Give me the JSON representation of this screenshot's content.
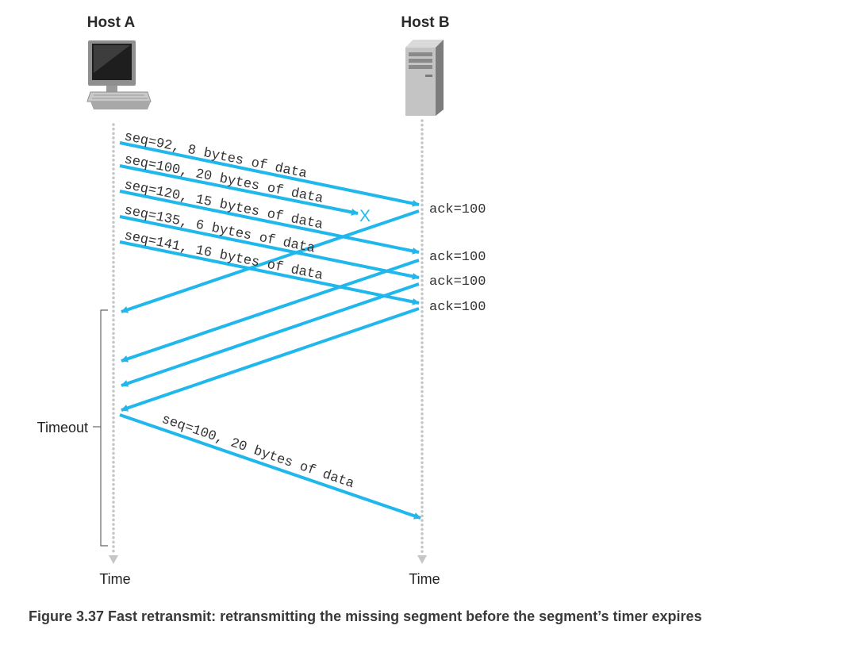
{
  "hosts": {
    "a_label": "Host A",
    "b_label": "Host B"
  },
  "time_labels": {
    "a": "Time",
    "b": "Time"
  },
  "timeout_label": "Timeout",
  "segments": [
    "seq=92, 8 bytes of data",
    "seq=100, 20 bytes of data",
    "seq=120, 15 bytes of data",
    "seq=135, 6 bytes of data",
    "seq=141, 16 bytes of data"
  ],
  "lost_marker": "X",
  "acks": [
    "ack=100",
    "ack=100",
    "ack=100",
    "ack=100"
  ],
  "retransmit": "seq=100, 20 bytes of data",
  "caption": "Figure 3.37 Fast retransmit: retransmitting the missing segment before the segment’s timer expires",
  "colors": {
    "arrow": "#1fb7ec",
    "timeline": "#c6c6c6",
    "text": "#333333"
  }
}
